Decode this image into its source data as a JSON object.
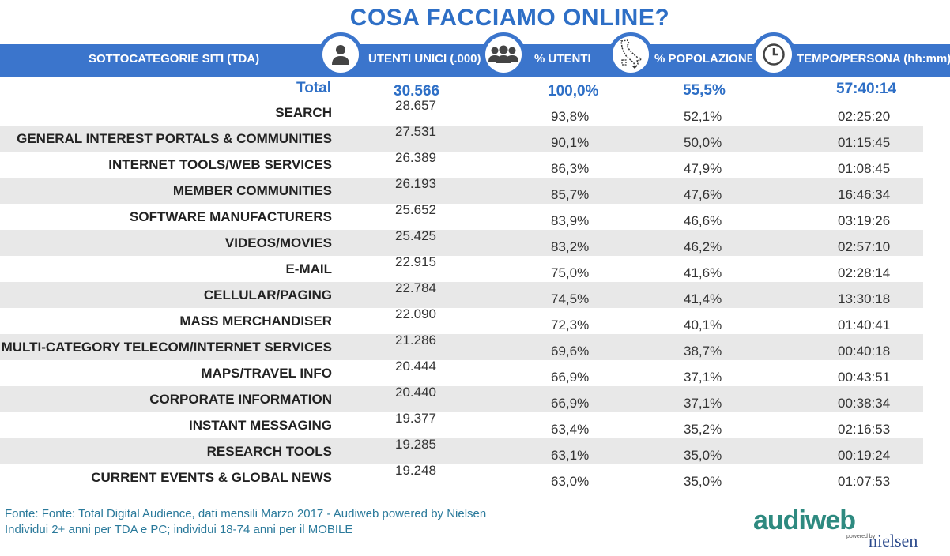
{
  "title": "COSA FACCIAMO ONLINE?",
  "headers": {
    "category": "SOTTOCATEGORIE SITI  (TDA)",
    "unique_users": "UTENTI UNICI (.000)",
    "pct_users": "% UTENTI",
    "pct_population": "% POPOLAZIONE",
    "time_per_person": "TEMPO/PERSONA (hh:mm)"
  },
  "icons": [
    "person-icon",
    "group-icon",
    "italy-map-icon",
    "clock-icon"
  ],
  "total": {
    "label": "Total",
    "users": "30.566",
    "pct_users": "100,0%",
    "pct_population": "55,5%",
    "time": "57:40:14"
  },
  "rows": [
    {
      "category": "SEARCH",
      "users": "28.657",
      "pct_users": "93,8%",
      "pct_population": "52,1%",
      "time": "02:25:20"
    },
    {
      "category": "GENERAL INTEREST PORTALS & COMMUNITIES",
      "users": "27.531",
      "pct_users": "90,1%",
      "pct_population": "50,0%",
      "time": "01:15:45"
    },
    {
      "category": "INTERNET TOOLS/WEB SERVICES",
      "users": "26.389",
      "pct_users": "86,3%",
      "pct_population": "47,9%",
      "time": "01:08:45"
    },
    {
      "category": "MEMBER COMMUNITIES",
      "users": "26.193",
      "pct_users": "85,7%",
      "pct_population": "47,6%",
      "time": "16:46:34"
    },
    {
      "category": "SOFTWARE MANUFACTURERS",
      "users": "25.652",
      "pct_users": "83,9%",
      "pct_population": "46,6%",
      "time": "03:19:26"
    },
    {
      "category": "VIDEOS/MOVIES",
      "users": "25.425",
      "pct_users": "83,2%",
      "pct_population": "46,2%",
      "time": "02:57:10"
    },
    {
      "category": "E-MAIL",
      "users": "22.915",
      "pct_users": "75,0%",
      "pct_population": "41,6%",
      "time": "02:28:14"
    },
    {
      "category": "CELLULAR/PAGING",
      "users": "22.784",
      "pct_users": "74,5%",
      "pct_population": "41,4%",
      "time": "13:30:18"
    },
    {
      "category": "MASS MERCHANDISER",
      "users": "22.090",
      "pct_users": "72,3%",
      "pct_population": "40,1%",
      "time": "01:40:41"
    },
    {
      "category": "MULTI-CATEGORY TELECOM/INTERNET SERVICES",
      "users": "21.286",
      "pct_users": "69,6%",
      "pct_population": "38,7%",
      "time": "00:40:18"
    },
    {
      "category": "MAPS/TRAVEL INFO",
      "users": "20.444",
      "pct_users": "66,9%",
      "pct_population": "37,1%",
      "time": "00:43:51"
    },
    {
      "category": "CORPORATE INFORMATION",
      "users": "20.440",
      "pct_users": "66,9%",
      "pct_population": "37,1%",
      "time": "00:38:34"
    },
    {
      "category": "INSTANT MESSAGING",
      "users": "19.377",
      "pct_users": "63,4%",
      "pct_population": "35,2%",
      "time": "02:16:53"
    },
    {
      "category": "RESEARCH TOOLS",
      "users": "19.285",
      "pct_users": "63,1%",
      "pct_population": "35,0%",
      "time": "00:19:24"
    },
    {
      "category": "CURRENT EVENTS & GLOBAL NEWS",
      "users": "19.248",
      "pct_users": "63,0%",
      "pct_population": "35,0%",
      "time": "01:07:53"
    }
  ],
  "footer": {
    "line1": "Fonte: Fonte: Total Digital Audience, dati mensili Marzo 2017 - Audiweb powered by Nielsen",
    "line2": "Individui 2+ anni per TDA e PC; individui 18-74 anni per il MOBILE"
  },
  "logo": {
    "brand": "audiweb",
    "powered_by": "powered by",
    "partner": "nielsen"
  },
  "colors": {
    "header_bar": "#3b75cc",
    "title": "#2e6fc6",
    "row_shade": "#e8e8e8",
    "footer_text": "#2b7a9b"
  }
}
